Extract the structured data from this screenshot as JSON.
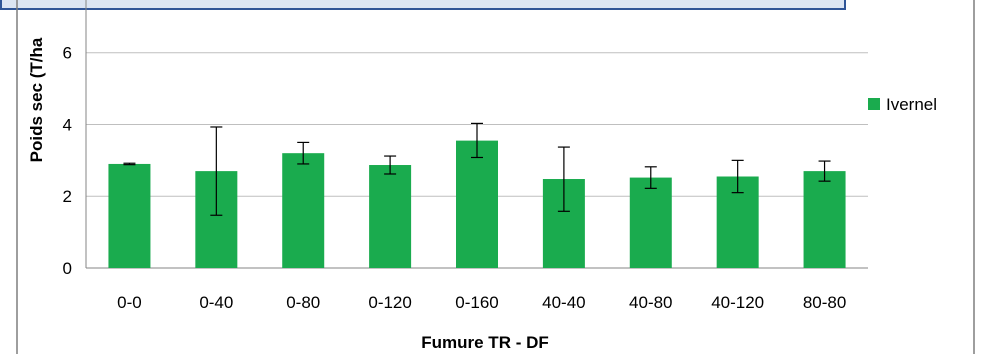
{
  "chart_data": {
    "type": "bar",
    "categories": [
      "0-0",
      "0-40",
      "0-80",
      "0-120",
      "0-160",
      "40-40",
      "40-80",
      "40-120",
      "80-80"
    ],
    "series": [
      {
        "name": "Ivernel",
        "values": [
          2.9,
          2.7,
          3.2,
          2.87,
          3.55,
          2.48,
          2.52,
          2.55,
          2.7
        ],
        "error_low": [
          2.88,
          1.47,
          2.9,
          2.62,
          3.08,
          1.58,
          2.22,
          2.1,
          2.42
        ],
        "error_high": [
          2.92,
          3.93,
          3.5,
          3.12,
          4.03,
          3.37,
          2.82,
          3.0,
          2.98
        ]
      }
    ],
    "xlabel": "Fumure TR - DF",
    "ylabel": "Poids sec (T/ha",
    "ylim": [
      0,
      6.8
    ],
    "yticks": [
      "0",
      "2",
      "4",
      "6"
    ],
    "grid": true,
    "legend_position": "right",
    "colors": {
      "bar": "#1aab4e",
      "grid": "#bfbfbf",
      "frame": "#7f7f7f",
      "overlay_border": "#2f5597",
      "overlay_fill": "#dbe5f3"
    }
  }
}
